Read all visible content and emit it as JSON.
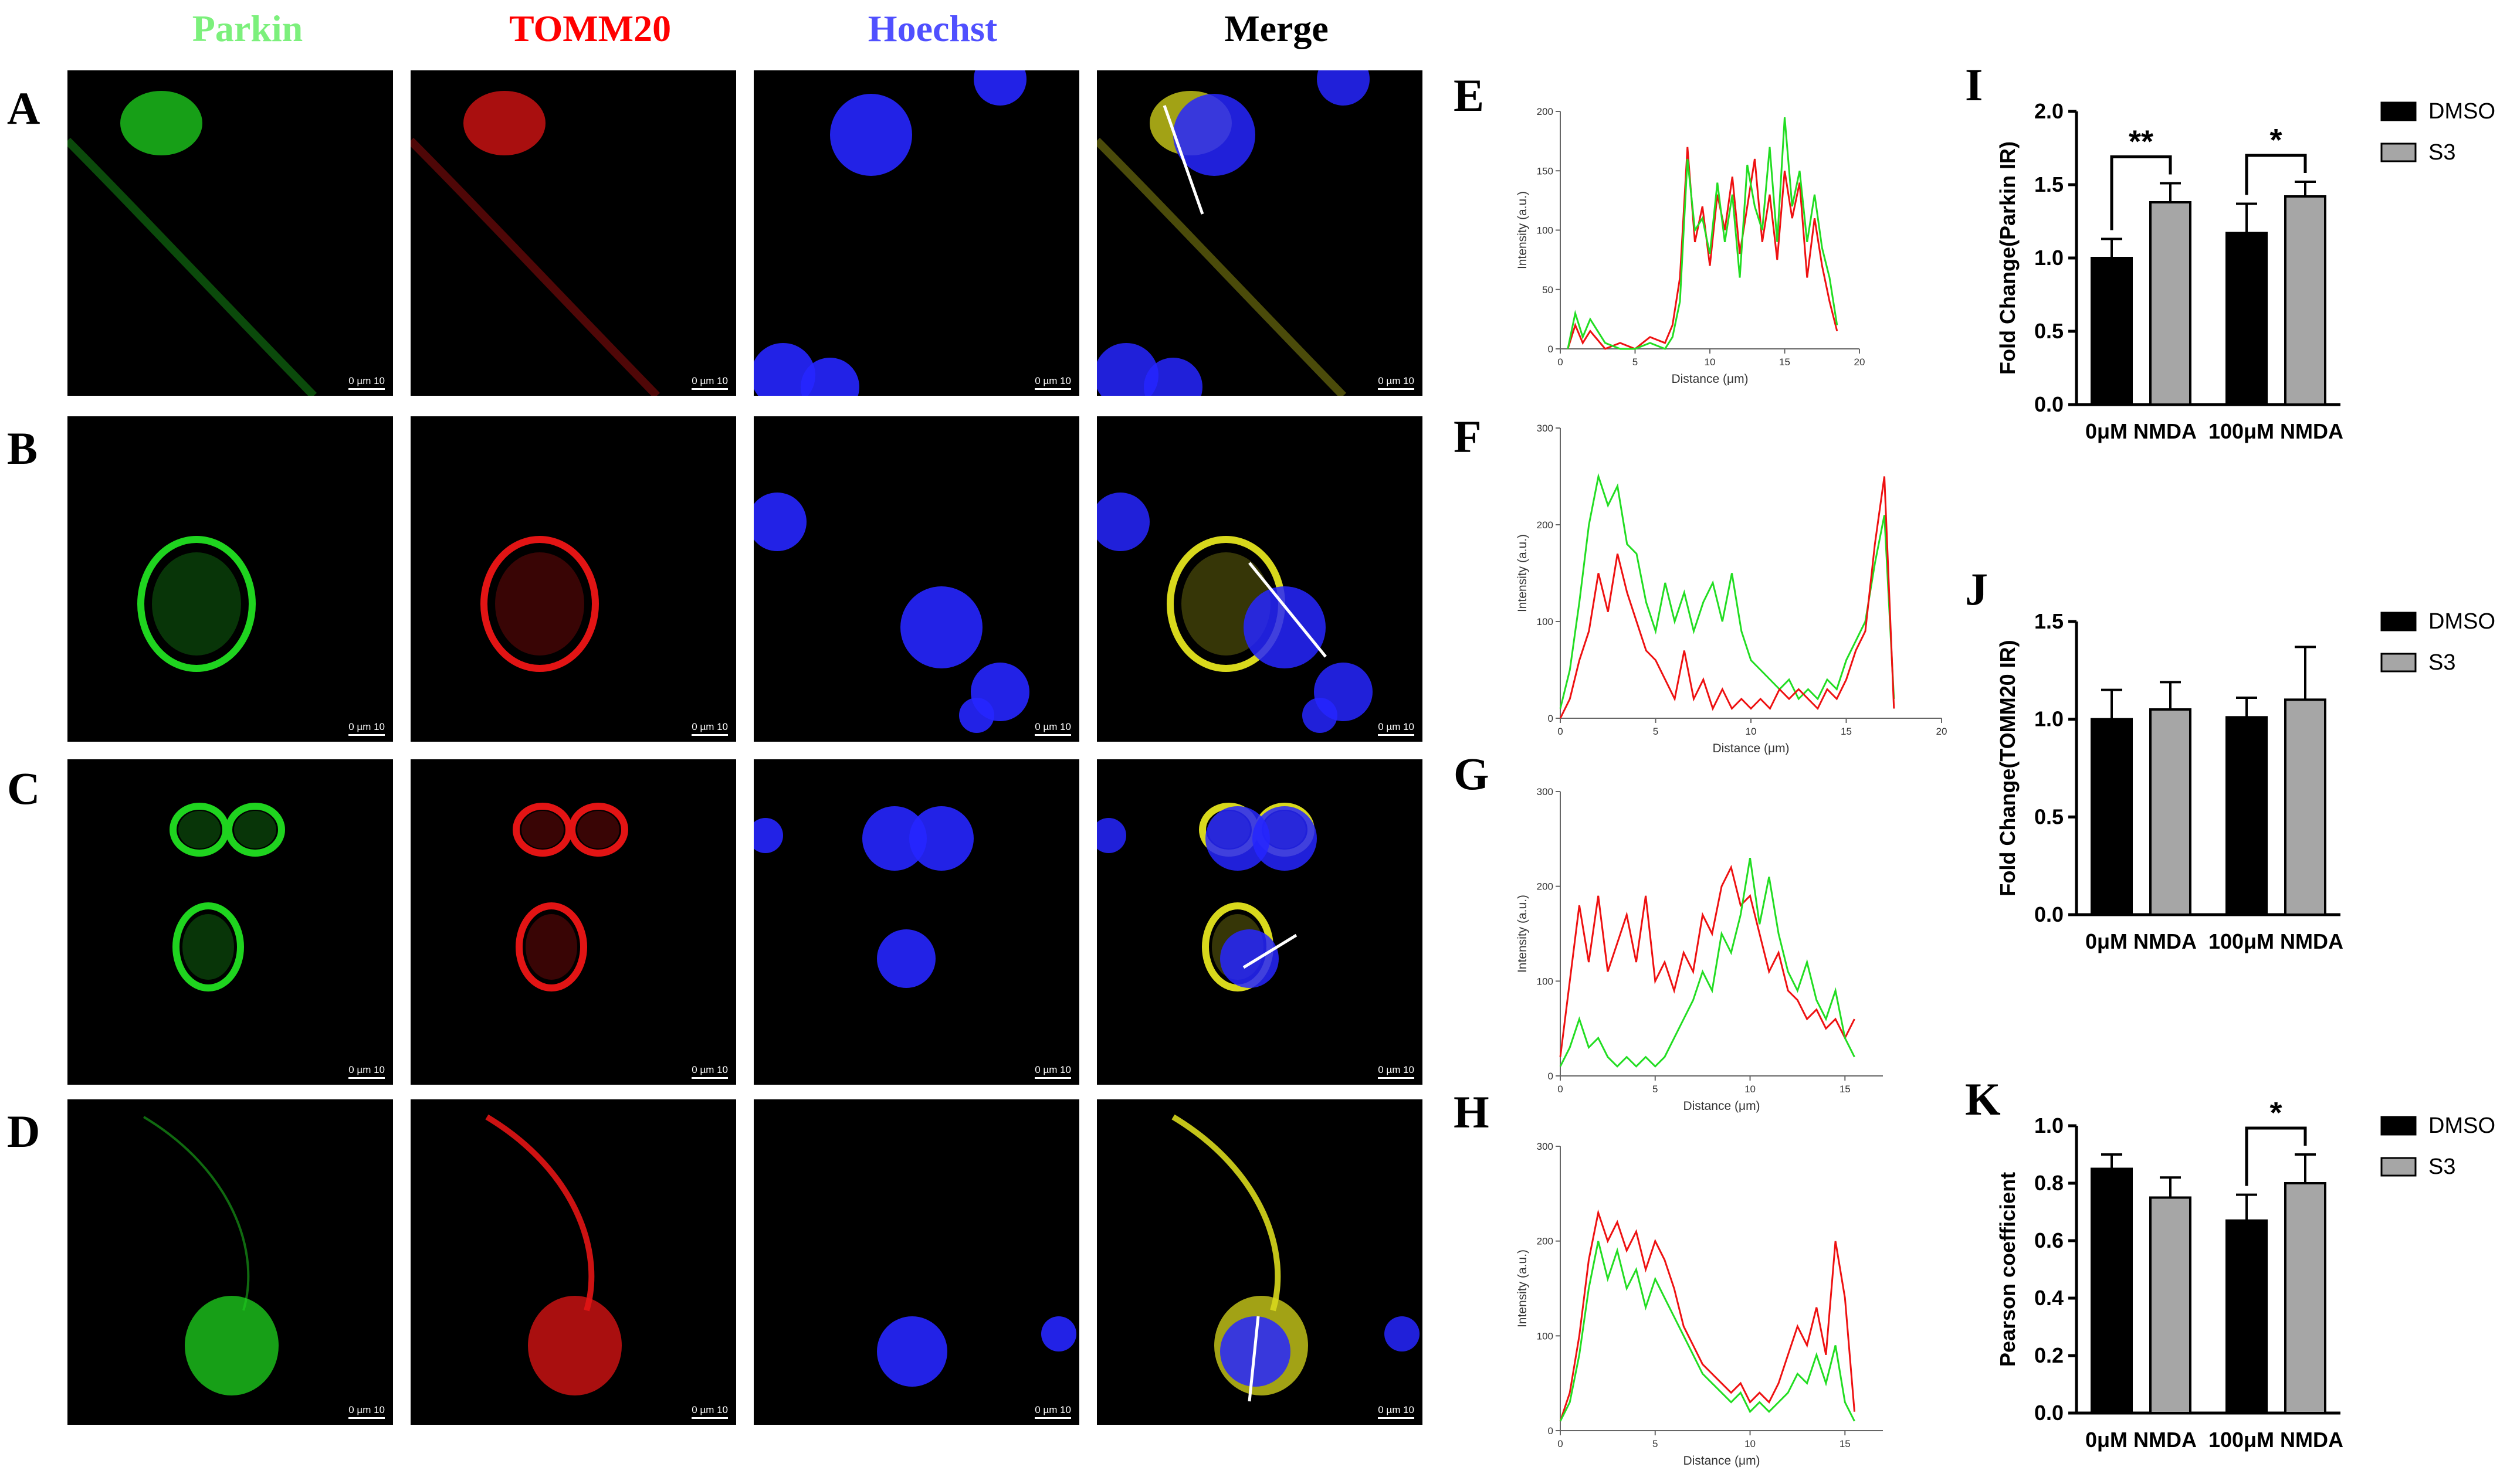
{
  "columns": [
    {
      "label": "Parkin",
      "color": "#7cf07c"
    },
    {
      "label": "TOMM20",
      "color": "#ff0000"
    },
    {
      "label": "Hoechst",
      "color": "#5050ff"
    },
    {
      "label": "Merge",
      "color": "#000000"
    }
  ],
  "rows": [
    "A",
    "B",
    "C",
    "D"
  ],
  "scale_bar": {
    "start": "0",
    "unit": "µm",
    "end": "10"
  },
  "profile_panels": [
    "E",
    "F",
    "G",
    "H"
  ],
  "bar_panels": [
    "I",
    "J",
    "K"
  ],
  "colors": {
    "green": "#22dd22",
    "red": "#ee1111",
    "dmso": "#000000",
    "s3": "#a6a6a6"
  },
  "chart_data": [
    {
      "panel": "E",
      "type": "line",
      "xlabel": "Distance (μm)",
      "ylabel": "Intensity (a.u.)",
      "xlim": [
        0,
        20
      ],
      "ylim": [
        0,
        200
      ],
      "xticks": [
        0,
        5,
        10,
        15,
        20
      ],
      "yticks": [
        0,
        50,
        100,
        150,
        200
      ],
      "series": [
        {
          "color": "#ee1111",
          "x": [
            0.5,
            1,
            1.5,
            2,
            3,
            4,
            5,
            6,
            7,
            7.5,
            8,
            8.5,
            9,
            9.5,
            10,
            10.5,
            11,
            11.5,
            12,
            12.5,
            13,
            13.5,
            14,
            14.5,
            15,
            15.5,
            16,
            16.5,
            17,
            17.5,
            18,
            18.5
          ],
          "y": [
            0,
            20,
            5,
            15,
            0,
            5,
            0,
            10,
            5,
            20,
            60,
            170,
            90,
            120,
            70,
            130,
            100,
            145,
            80,
            120,
            160,
            90,
            130,
            75,
            150,
            110,
            140,
            60,
            110,
            70,
            40,
            15
          ]
        },
        {
          "color": "#22dd22",
          "x": [
            0.5,
            1,
            1.5,
            2,
            3,
            4,
            5,
            6,
            7,
            7.5,
            8,
            8.5,
            9,
            9.5,
            10,
            10.5,
            11,
            11.5,
            12,
            12.5,
            13,
            13.5,
            14,
            14.5,
            15,
            15.5,
            16,
            16.5,
            17,
            17.5,
            18,
            18.5
          ],
          "y": [
            0,
            30,
            10,
            25,
            5,
            0,
            0,
            5,
            0,
            10,
            40,
            160,
            100,
            110,
            80,
            140,
            90,
            130,
            60,
            155,
            120,
            100,
            170,
            90,
            195,
            120,
            150,
            90,
            130,
            85,
            60,
            20
          ]
        }
      ]
    },
    {
      "panel": "F",
      "type": "line",
      "xlabel": "Distance (μm)",
      "ylabel": "Intensity (a.u.)",
      "xlim": [
        0,
        20
      ],
      "ylim": [
        0,
        300
      ],
      "xticks": [
        0,
        5,
        10,
        15,
        20
      ],
      "yticks": [
        0,
        100,
        200,
        300
      ],
      "series": [
        {
          "color": "#22dd22",
          "x": [
            0,
            0.5,
            1,
            1.5,
            2,
            2.5,
            3,
            3.5,
            4,
            4.5,
            5,
            5.5,
            6,
            6.5,
            7,
            7.5,
            8,
            8.5,
            9,
            9.5,
            10,
            10.5,
            11,
            11.5,
            12,
            12.5,
            13,
            13.5,
            14,
            14.5,
            15,
            15.5,
            16,
            16.5,
            17,
            17.5
          ],
          "y": [
            10,
            50,
            120,
            200,
            250,
            220,
            240,
            180,
            170,
            120,
            90,
            140,
            100,
            130,
            90,
            120,
            140,
            100,
            150,
            90,
            60,
            50,
            40,
            30,
            40,
            20,
            30,
            20,
            40,
            30,
            60,
            80,
            100,
            160,
            210,
            20
          ]
        },
        {
          "color": "#ee1111",
          "x": [
            0,
            0.5,
            1,
            1.5,
            2,
            2.5,
            3,
            3.5,
            4,
            4.5,
            5,
            5.5,
            6,
            6.5,
            7,
            7.5,
            8,
            8.5,
            9,
            9.5,
            10,
            10.5,
            11,
            11.5,
            12,
            12.5,
            13,
            13.5,
            14,
            14.5,
            15,
            15.5,
            16,
            16.5,
            17,
            17.5
          ],
          "y": [
            0,
            20,
            60,
            90,
            150,
            110,
            170,
            130,
            100,
            70,
            60,
            40,
            20,
            70,
            20,
            40,
            10,
            30,
            10,
            20,
            10,
            20,
            10,
            30,
            20,
            30,
            20,
            10,
            30,
            20,
            40,
            70,
            90,
            180,
            250,
            10
          ]
        }
      ]
    },
    {
      "panel": "G",
      "type": "line",
      "xlabel": "Distance (μm)",
      "ylabel": "Intensity (a.u.)",
      "xlim": [
        0,
        17
      ],
      "ylim": [
        0,
        300
      ],
      "xticks": [
        0,
        5,
        10,
        15
      ],
      "yticks": [
        0,
        100,
        200,
        300
      ],
      "series": [
        {
          "color": "#ee1111",
          "x": [
            0,
            0.5,
            1,
            1.5,
            2,
            2.5,
            3,
            3.5,
            4,
            4.5,
            5,
            5.5,
            6,
            6.5,
            7,
            7.5,
            8,
            8.5,
            9,
            9.5,
            10,
            10.5,
            11,
            11.5,
            12,
            12.5,
            13,
            13.5,
            14,
            14.5,
            15,
            15.5
          ],
          "y": [
            20,
            100,
            180,
            120,
            190,
            110,
            140,
            170,
            120,
            190,
            100,
            120,
            90,
            130,
            110,
            170,
            150,
            200,
            220,
            180,
            190,
            150,
            110,
            130,
            90,
            80,
            60,
            70,
            50,
            60,
            40,
            60
          ]
        },
        {
          "color": "#22dd22",
          "x": [
            0,
            0.5,
            1,
            1.5,
            2,
            2.5,
            3,
            3.5,
            4,
            4.5,
            5,
            5.5,
            6,
            6.5,
            7,
            7.5,
            8,
            8.5,
            9,
            9.5,
            10,
            10.5,
            11,
            11.5,
            12,
            12.5,
            13,
            13.5,
            14,
            14.5,
            15,
            15.5
          ],
          "y": [
            10,
            30,
            60,
            30,
            40,
            20,
            10,
            20,
            10,
            20,
            10,
            20,
            40,
            60,
            80,
            110,
            90,
            150,
            130,
            170,
            230,
            160,
            210,
            150,
            110,
            90,
            120,
            80,
            60,
            90,
            40,
            20
          ]
        }
      ]
    },
    {
      "panel": "H",
      "type": "line",
      "xlabel": "Distance (μm)",
      "ylabel": "Intensity (a.u.)",
      "xlim": [
        0,
        17
      ],
      "ylim": [
        0,
        300
      ],
      "xticks": [
        0,
        5,
        10,
        15
      ],
      "yticks": [
        0,
        100,
        200,
        300
      ],
      "series": [
        {
          "color": "#ee1111",
          "x": [
            0,
            0.5,
            1,
            1.5,
            2,
            2.5,
            3,
            3.5,
            4,
            4.5,
            5,
            5.5,
            6,
            6.5,
            7,
            7.5,
            8,
            8.5,
            9,
            9.5,
            10,
            10.5,
            11,
            11.5,
            12,
            12.5,
            13,
            13.5,
            14,
            14.5,
            15,
            15.5
          ],
          "y": [
            10,
            40,
            100,
            180,
            230,
            200,
            220,
            190,
            210,
            170,
            200,
            180,
            150,
            110,
            90,
            70,
            60,
            50,
            40,
            50,
            30,
            40,
            30,
            50,
            80,
            110,
            90,
            130,
            80,
            200,
            140,
            20
          ]
        },
        {
          "color": "#22dd22",
          "x": [
            0,
            0.5,
            1,
            1.5,
            2,
            2.5,
            3,
            3.5,
            4,
            4.5,
            5,
            5.5,
            6,
            6.5,
            7,
            7.5,
            8,
            8.5,
            9,
            9.5,
            10,
            10.5,
            11,
            11.5,
            12,
            12.5,
            13,
            13.5,
            14,
            14.5,
            15,
            15.5
          ],
          "y": [
            10,
            30,
            80,
            150,
            200,
            160,
            190,
            150,
            170,
            130,
            160,
            140,
            120,
            100,
            80,
            60,
            50,
            40,
            30,
            40,
            20,
            30,
            20,
            30,
            40,
            60,
            50,
            80,
            50,
            90,
            30,
            10
          ]
        }
      ]
    },
    {
      "panel": "I",
      "type": "bar",
      "ylabel": "Fold Change(Parkin IR)",
      "categories": [
        "0μM NMDA",
        "100μM NMDA"
      ],
      "ylim": [
        0,
        2.0
      ],
      "yticks": [
        "0.0",
        "0.5",
        "1.0",
        "1.5",
        "2.0"
      ],
      "series": [
        {
          "name": "DMSO",
          "values": [
            1.0,
            1.17
          ],
          "errors": [
            0.13,
            0.2
          ]
        },
        {
          "name": "S3",
          "values": [
            1.38,
            1.42
          ],
          "errors": [
            0.13,
            0.1
          ]
        }
      ],
      "significance": [
        "**",
        "*"
      ]
    },
    {
      "panel": "J",
      "type": "bar",
      "ylabel": "Fold Change(TOMM20 IR)",
      "categories": [
        "0μM NMDA",
        "100μM NMDA"
      ],
      "ylim": [
        0,
        1.5
      ],
      "yticks": [
        "0.0",
        "0.5",
        "1.0",
        "1.5"
      ],
      "series": [
        {
          "name": "DMSO",
          "values": [
            1.0,
            1.01
          ],
          "errors": [
            0.15,
            0.1
          ]
        },
        {
          "name": "S3",
          "values": [
            1.05,
            1.1
          ],
          "errors": [
            0.14,
            0.27
          ]
        }
      ],
      "significance": [
        "",
        ""
      ]
    },
    {
      "panel": "K",
      "type": "bar",
      "ylabel": "Pearson coefficient",
      "categories": [
        "0μM NMDA",
        "100μM NMDA"
      ],
      "ylim": [
        0,
        1.0
      ],
      "yticks": [
        "0.0",
        "0.2",
        "0.4",
        "0.6",
        "0.8",
        "1.0"
      ],
      "series": [
        {
          "name": "DMSO",
          "values": [
            0.85,
            0.67
          ],
          "errors": [
            0.05,
            0.09
          ]
        },
        {
          "name": "S3",
          "values": [
            0.75,
            0.8
          ],
          "errors": [
            0.07,
            0.1
          ]
        }
      ],
      "significance": [
        "",
        "*"
      ]
    }
  ]
}
